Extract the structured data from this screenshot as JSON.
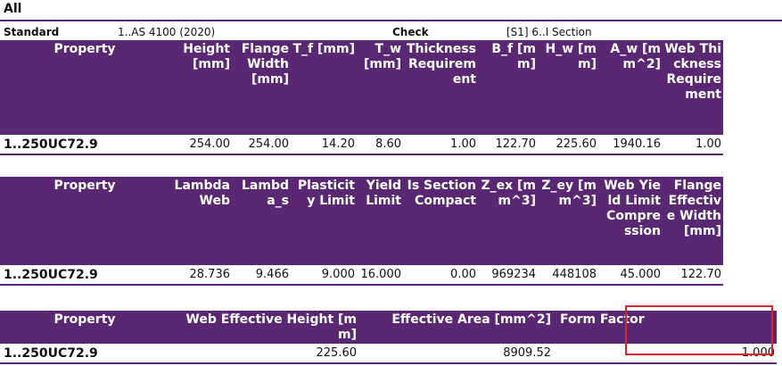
{
  "page": {
    "title": "All"
  },
  "meta": {
    "standard_label": "Standard",
    "standard_value": "1..AS 4100 (2020)",
    "check_label": "Check",
    "check_value": "[S1] 6..I Section"
  },
  "table1": {
    "headers": [
      "Property",
      "Height [mm]",
      "Flange Width [mm]",
      "T_f [mm]",
      "T_w [mm]",
      "Thickness Requirement",
      "B_f [mm]",
      "H_w [mm]",
      "A_w [mm^2]",
      "Web Thickness Requirement"
    ],
    "row": [
      "1..250UC72.9",
      "254.00",
      "254.00",
      "14.20",
      "8.60",
      "1.00",
      "122.70",
      "225.60",
      "1940.16",
      "1.00"
    ]
  },
  "table2": {
    "headers": [
      "Property",
      "Lambda Web",
      "Lambda_s",
      "Plasticity Limit",
      "Yield Limit",
      "Is Section Compact",
      "Z_ex [mm^3]",
      "Z_ey [mm^3]",
      "Web Yield Limit Compression",
      "Flange Effective Width [mm]"
    ],
    "row": [
      "1..250UC72.9",
      "28.736",
      "9.466",
      "9.000",
      "16.000",
      "0.00",
      "969234",
      "448108",
      "45.000",
      "122.70"
    ]
  },
  "table3": {
    "headers": [
      "Property",
      "Web Effective Height [mm]",
      "Effective Area [mm^2]",
      "Form Factor"
    ],
    "row": [
      "1..250UC72.9",
      "225.60",
      "8909.52",
      "1.000"
    ]
  },
  "colors": {
    "header_bg": "#5a2873",
    "highlight": "#d9262c"
  }
}
